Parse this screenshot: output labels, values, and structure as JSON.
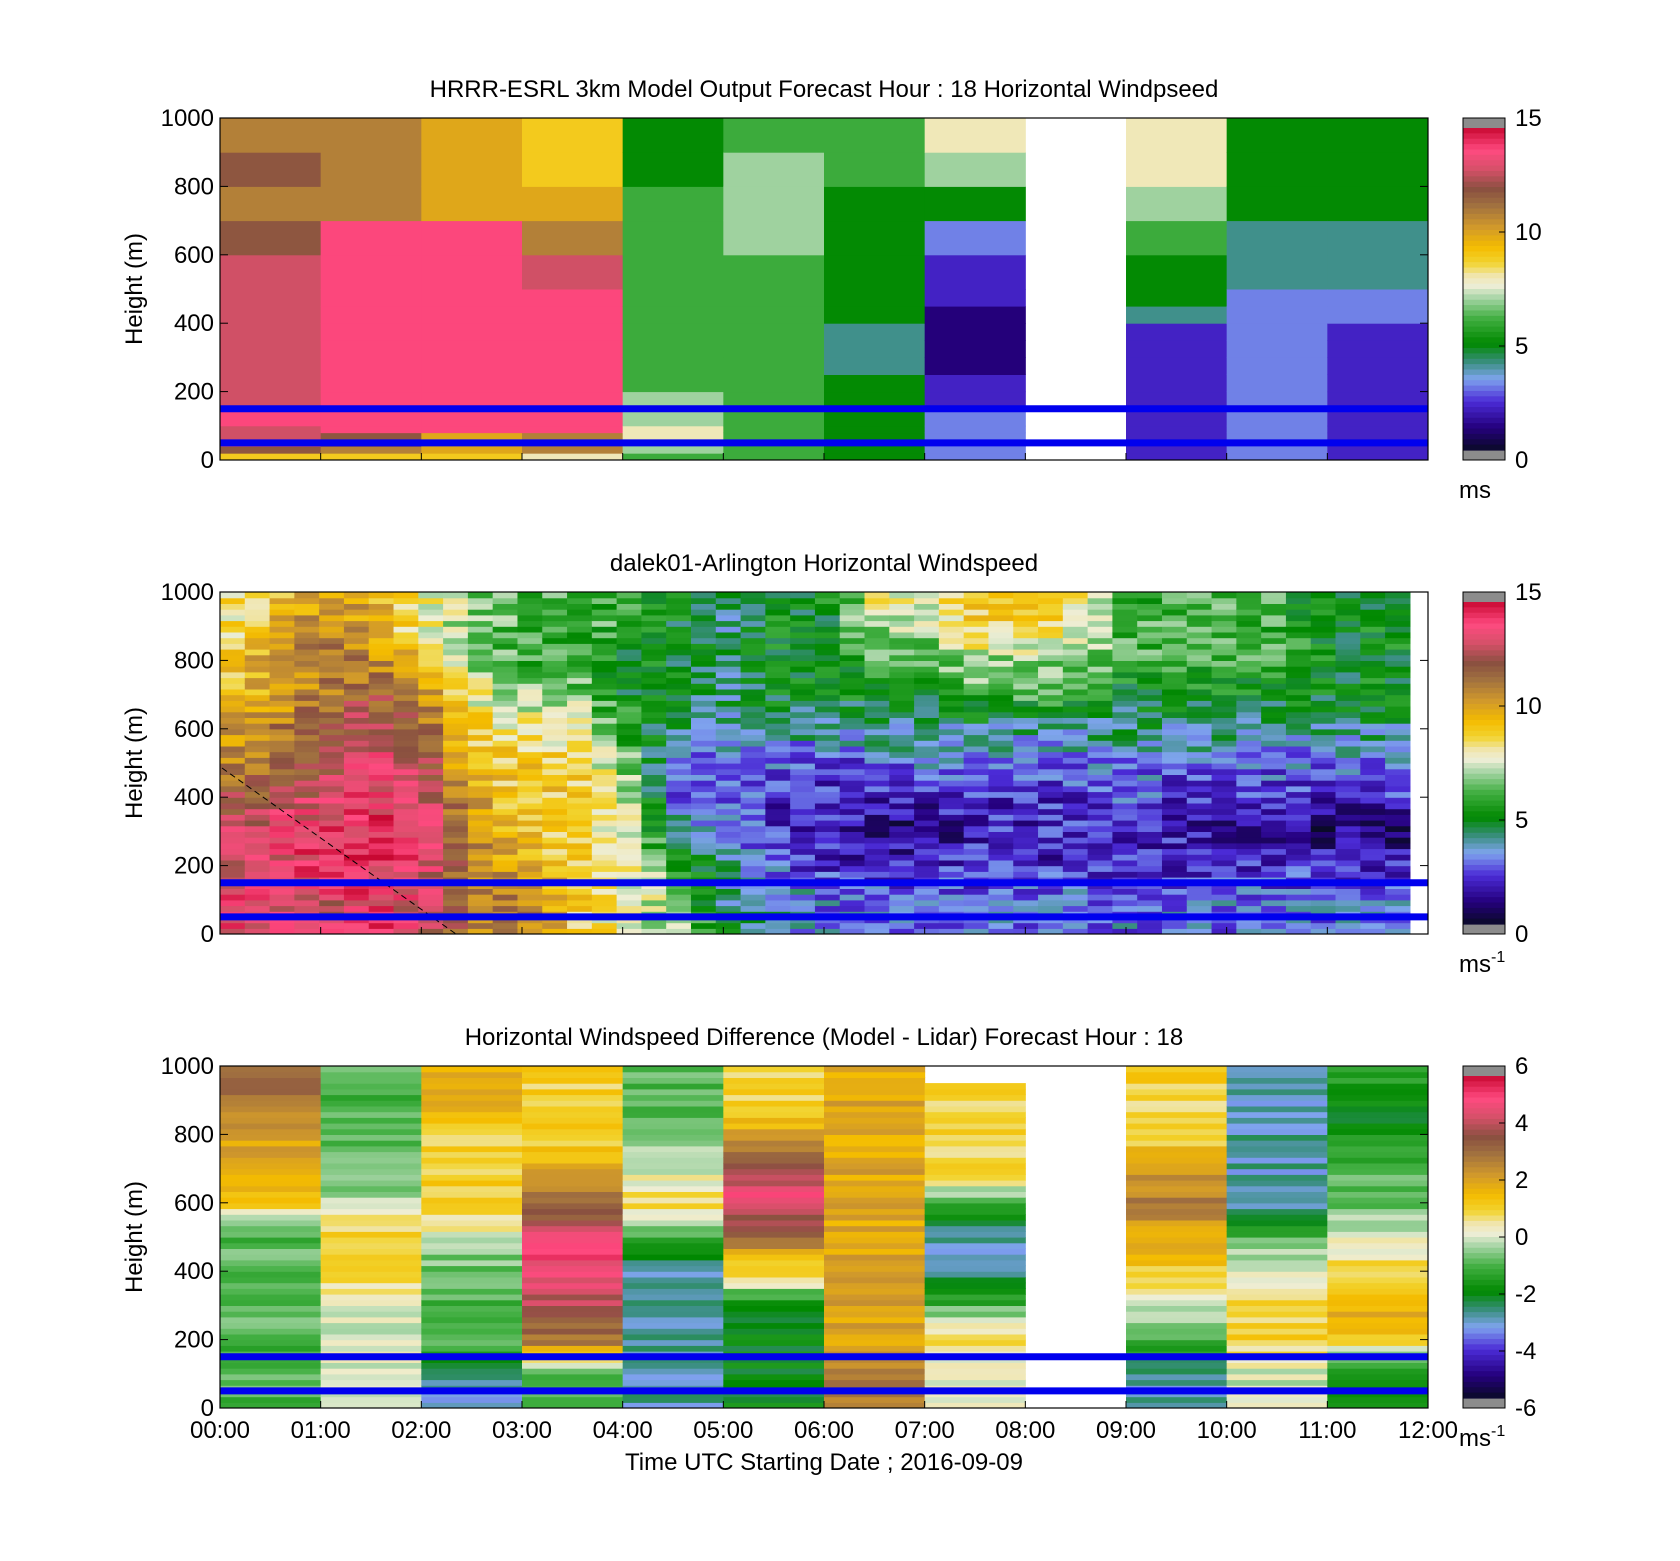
{
  "x_axis": {
    "ticks": [
      "00:00",
      "01:00",
      "02:00",
      "03:00",
      "04:00",
      "05:00",
      "06:00",
      "07:00",
      "08:00",
      "09:00",
      "10:00",
      "11:00",
      "12:00"
    ],
    "label": "Time UTC  Starting Date ; 2016-09-09"
  },
  "reference_lines": {
    "heights_m": [
      150,
      50
    ],
    "color": "#0000ee"
  },
  "chart_data": [
    {
      "type": "heatmap",
      "title": "HRRR-ESRL 3km Model Output   Forecast Hour : 18 Horizontal Windpseed",
      "ylabel": "Height (m)",
      "ylim": [
        0,
        1000
      ],
      "y_ticks": [
        "0",
        "200",
        "400",
        "600",
        "800",
        "1000"
      ],
      "colorbar": {
        "ticks": [
          "0",
          "5",
          "10",
          "15"
        ],
        "range": [
          0,
          15
        ],
        "unit": "ms",
        "unit_sup": ""
      },
      "hours": [
        0,
        1,
        2,
        3,
        4,
        5,
        6,
        7,
        8,
        9,
        10,
        11,
        12
      ],
      "levels_m": [
        0,
        20,
        40,
        60,
        80,
        100,
        150,
        200,
        250,
        300,
        350,
        400,
        450,
        500,
        600,
        700,
        800,
        900,
        1000
      ],
      "values_ms": [
        [
          9,
          12,
          13,
          13,
          13,
          14,
          13,
          13,
          13,
          13,
          13,
          13,
          13,
          13,
          12,
          11,
          12,
          11
        ],
        [
          9,
          11,
          12,
          12,
          14,
          14,
          14,
          14,
          14,
          14,
          14,
          14,
          14,
          14,
          14,
          11,
          11,
          11
        ],
        [
          9,
          10,
          10,
          10,
          14,
          14,
          14,
          14,
          14,
          14,
          14,
          14,
          14,
          14,
          14,
          10,
          10,
          10
        ],
        [
          8,
          11,
          11,
          11,
          14,
          14,
          14,
          14,
          14,
          14,
          14,
          14,
          14,
          13,
          11,
          10,
          9,
          9
        ],
        [
          6,
          7,
          7,
          8,
          8,
          7,
          7,
          6,
          6,
          6,
          6,
          6,
          6,
          6,
          6,
          6,
          5,
          5
        ],
        [
          6,
          6,
          6,
          6,
          6,
          6,
          6,
          6,
          6,
          6,
          6,
          6,
          6,
          6,
          7,
          7,
          7,
          6
        ],
        [
          5,
          5,
          5,
          5,
          5,
          5,
          5,
          5,
          4,
          4,
          4,
          5,
          5,
          5,
          5,
          5,
          6,
          6
        ],
        [
          3,
          3,
          3,
          3,
          3,
          3,
          2,
          2,
          1,
          1,
          1,
          1,
          2,
          2,
          3,
          5,
          7,
          8
        ],
        [
          null,
          null,
          null,
          null,
          null,
          null,
          null,
          null,
          null,
          null,
          null,
          null,
          null,
          null,
          null,
          null,
          null,
          null
        ],
        [
          2,
          2,
          2,
          2,
          2,
          2,
          2,
          2,
          2,
          2,
          2,
          4,
          5,
          5,
          6,
          7,
          8,
          8
        ],
        [
          3,
          3,
          3,
          3,
          3,
          3,
          3,
          3,
          3,
          3,
          3,
          3,
          3,
          4,
          4,
          5,
          5,
          5
        ],
        [
          2,
          2,
          2,
          2,
          2,
          2,
          2,
          2,
          2,
          2,
          2,
          3,
          3,
          4,
          4,
          5,
          5,
          5
        ]
      ]
    },
    {
      "type": "heatmap",
      "title": "dalek01-Arlington  Horizontal Windspeed",
      "ylabel": "Height (m)",
      "ylim": [
        0,
        1000
      ],
      "y_ticks": [
        "0",
        "200",
        "400",
        "600",
        "800",
        "1000"
      ],
      "colorbar": {
        "ticks": [
          "0",
          "5",
          "10",
          "15"
        ],
        "range": [
          0,
          15
        ],
        "unit": "ms",
        "unit_sup": "-1"
      },
      "time_anchors_h": [
        0,
        1,
        1.5,
        2,
        2.5,
        3,
        3.5,
        4,
        4.5,
        5,
        5.5,
        6,
        6.5,
        7,
        7.5,
        8,
        8.5,
        9,
        9.5,
        10,
        10.5,
        11,
        11.5,
        12
      ],
      "profile_heights_m": [
        0,
        100,
        200,
        300,
        400,
        500,
        600,
        700,
        800,
        900,
        1000
      ],
      "profiles_ms": [
        [
          14,
          14,
          13,
          13,
          12,
          11,
          10,
          9,
          9,
          8,
          8
        ],
        [
          13,
          13,
          14,
          14,
          13,
          12,
          12,
          11,
          11,
          11,
          10
        ],
        [
          14,
          14,
          14,
          14,
          14,
          14,
          13,
          12,
          11,
          10,
          10
        ],
        [
          13,
          13,
          14,
          14,
          13,
          13,
          12,
          11,
          9,
          8,
          8
        ],
        [
          11,
          11,
          11,
          11,
          10,
          9,
          9,
          8,
          7,
          7,
          7
        ],
        [
          11,
          11,
          10,
          9,
          9,
          9,
          8,
          7,
          6,
          6,
          6
        ],
        [
          9,
          9,
          9,
          9,
          9,
          9,
          8,
          7,
          6,
          6,
          6
        ],
        [
          8,
          8,
          8,
          8,
          8,
          7,
          6,
          5,
          5,
          6,
          6
        ],
        [
          7,
          7,
          6,
          4,
          3,
          3,
          4,
          5,
          5,
          5,
          5
        ],
        [
          5,
          4,
          4,
          3,
          3,
          3,
          4,
          4,
          4,
          4,
          4
        ],
        [
          4,
          4,
          3,
          2,
          2,
          3,
          4,
          5,
          5,
          5,
          5
        ],
        [
          3,
          3,
          2,
          2,
          2,
          2,
          4,
          5,
          5,
          5,
          5
        ],
        [
          3,
          3,
          2,
          1,
          2,
          3,
          4,
          5,
          6,
          7,
          8
        ],
        [
          3,
          3,
          2,
          1,
          2,
          3,
          4,
          5,
          6,
          7,
          8
        ],
        [
          3,
          3,
          2,
          2,
          2,
          3,
          4,
          6,
          7,
          9,
          9
        ],
        [
          3,
          3,
          2,
          2,
          2,
          3,
          4,
          6,
          7,
          9,
          9
        ],
        [
          3,
          3,
          2,
          2,
          2,
          3,
          4,
          6,
          7,
          8,
          8
        ],
        [
          3,
          3,
          2,
          2,
          3,
          3,
          4,
          5,
          6,
          6,
          6
        ],
        [
          3,
          3,
          2,
          2,
          2,
          3,
          4,
          5,
          6,
          6,
          6
        ],
        [
          3,
          3,
          2,
          1,
          2,
          3,
          4,
          5,
          6,
          6,
          6
        ],
        [
          3,
          3,
          2,
          1,
          2,
          3,
          4,
          5,
          6,
          6,
          6
        ],
        [
          3,
          3,
          2,
          1,
          2,
          3,
          4,
          5,
          5,
          5,
          5
        ],
        [
          3,
          3,
          2,
          1,
          2,
          3,
          4,
          5,
          5,
          5,
          5
        ],
        [
          3,
          3,
          2,
          1,
          2,
          3,
          4,
          5,
          5,
          5,
          5
        ]
      ]
    },
    {
      "type": "heatmap",
      "title": "Horizontal Windspeed Difference (Model - Lidar) Forecast Hour : 18",
      "ylabel": "Height (m)",
      "ylim": [
        0,
        1000
      ],
      "y_ticks": [
        "0",
        "200",
        "400",
        "600",
        "800",
        "1000"
      ],
      "colorbar": {
        "ticks": [
          "-6",
          "-4",
          "-2",
          "0",
          "2",
          "4",
          "6"
        ],
        "range": [
          -6,
          6
        ],
        "unit": "ms",
        "unit_sup": "-1"
      },
      "hours": [
        0,
        1,
        2,
        3,
        4,
        5,
        6,
        7,
        8,
        9,
        10,
        11,
        12
      ],
      "profile_heights_m": [
        0,
        100,
        200,
        300,
        400,
        500,
        600,
        700,
        800,
        900,
        1000
      ],
      "profiles_diff_ms": [
        [
          -1,
          -1,
          -1,
          -1,
          -1,
          -1,
          1,
          2,
          2,
          3,
          3
        ],
        [
          0,
          0,
          0,
          0,
          1,
          1,
          0,
          -1,
          -1,
          -1,
          -1
        ],
        [
          -3,
          -3,
          -1,
          -1,
          -1,
          0,
          1,
          1,
          1,
          2,
          2
        ],
        [
          -1,
          -1,
          3,
          4,
          5,
          5,
          3,
          2,
          1,
          1,
          1
        ],
        [
          -3,
          -3,
          -3,
          -3,
          -3,
          -1,
          1,
          0,
          -1,
          -1,
          -1
        ],
        [
          -2,
          -2,
          -2,
          -2,
          1,
          3,
          5,
          4,
          2,
          1,
          1
        ],
        [
          3,
          3,
          2,
          2,
          2,
          2,
          2,
          2,
          2,
          2,
          2
        ],
        [
          0,
          0,
          1,
          -1,
          -3,
          -3,
          -1,
          1,
          1,
          1,
          null
        ],
        [
          null,
          null,
          null,
          null,
          null,
          null,
          null,
          null,
          null,
          null,
          null
        ],
        [
          -3,
          -3,
          -1,
          0,
          1,
          2,
          3,
          2,
          1,
          1,
          1
        ],
        [
          0,
          0,
          1,
          1,
          0,
          -1,
          -3,
          -3,
          -3,
          -3,
          -3
        ],
        [
          -2,
          -2,
          1,
          2,
          1,
          0,
          -1,
          -1,
          -2,
          -2,
          -1
        ]
      ]
    }
  ]
}
